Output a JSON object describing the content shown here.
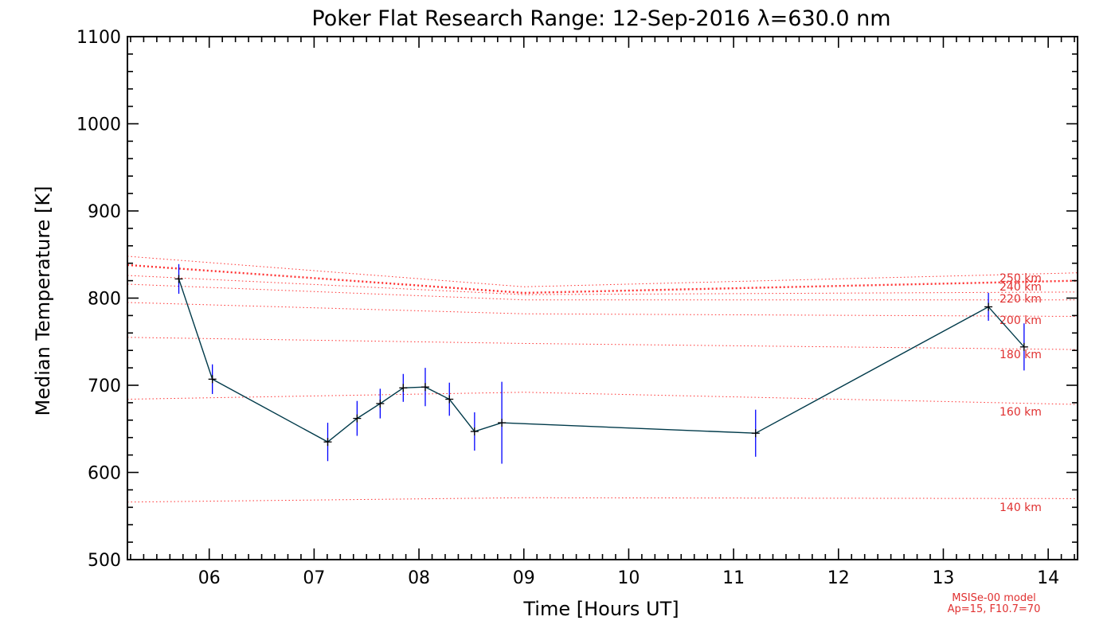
{
  "chart_data": {
    "type": "line",
    "title": "Poker Flat Research Range: 12-Sep-2016 λ=630.0 nm",
    "xlabel": "Time [Hours UT]",
    "ylabel": "Median Temperature [K]",
    "xlim": [
      5.22,
      14.28
    ],
    "ylim": [
      500,
      1100
    ],
    "x_ticks": [
      {
        "value": 6,
        "label": "06"
      },
      {
        "value": 7,
        "label": "07"
      },
      {
        "value": 8,
        "label": "08"
      },
      {
        "value": 9,
        "label": "09"
      },
      {
        "value": 10,
        "label": "10"
      },
      {
        "value": 11,
        "label": "11"
      },
      {
        "value": 12,
        "label": "12"
      },
      {
        "value": 13,
        "label": "13"
      },
      {
        "value": 14,
        "label": "14"
      }
    ],
    "y_ticks": [
      {
        "value": 500,
        "label": "500"
      },
      {
        "value": 600,
        "label": "600"
      },
      {
        "value": 700,
        "label": "700"
      },
      {
        "value": 800,
        "label": "800"
      },
      {
        "value": 900,
        "label": "900"
      },
      {
        "value": 1000,
        "label": "1000"
      },
      {
        "value": 1100,
        "label": "1100"
      }
    ],
    "series": [
      {
        "name": "Median Temperature",
        "color": "#003a4a",
        "error_color": "#0000ff",
        "x": [
          5.71,
          6.03,
          7.13,
          7.41,
          7.63,
          7.85,
          8.06,
          8.29,
          8.53,
          8.79,
          11.21,
          13.43,
          13.77
        ],
        "y": [
          822,
          707,
          635,
          662,
          679,
          697,
          698,
          684,
          647,
          657,
          645,
          790,
          744
        ],
        "err": [
          17,
          17,
          22,
          20,
          17,
          16,
          22,
          19,
          22,
          47,
          27,
          16,
          27
        ]
      }
    ],
    "model_curves": [
      {
        "label": "140 km",
        "color": "#ff3030",
        "x": [
          5.22,
          9.0,
          14.28
        ],
        "y": [
          566,
          571,
          570
        ]
      },
      {
        "label": "160 km",
        "color": "#ff3030",
        "x": [
          5.22,
          9.0,
          14.28
        ],
        "y": [
          684,
          692,
          678
        ]
      },
      {
        "label": "180 km",
        "color": "#ff3030",
        "x": [
          5.22,
          9.0,
          14.28
        ],
        "y": [
          755,
          748,
          741
        ]
      },
      {
        "label": "200 km",
        "color": "#ff3030",
        "x": [
          5.22,
          9.0,
          14.28
        ],
        "y": [
          795,
          782,
          779
        ]
      },
      {
        "label": "220 km",
        "color": "#ff3030",
        "x": [
          5.22,
          9.0,
          14.28
        ],
        "y": [
          816,
          798,
          798
        ]
      },
      {
        "label": "240 km",
        "color": "#ff3030",
        "x": [
          5.22,
          9.0,
          14.28
        ],
        "y": [
          826,
          804,
          807
        ]
      },
      {
        "label": "250 km",
        "color": "#ff3030",
        "x": [
          5.22,
          9.0,
          14.28
        ],
        "y": [
          838,
          806,
          820
        ],
        "bold": true
      },
      {
        "label": "",
        "color": "#ff3030",
        "x": [
          5.22,
          9.0,
          14.28
        ],
        "y": [
          848,
          813,
          829
        ]
      }
    ],
    "annotations": [
      "MSISe-00 model",
      "Ap=15, F10.7=70"
    ]
  }
}
